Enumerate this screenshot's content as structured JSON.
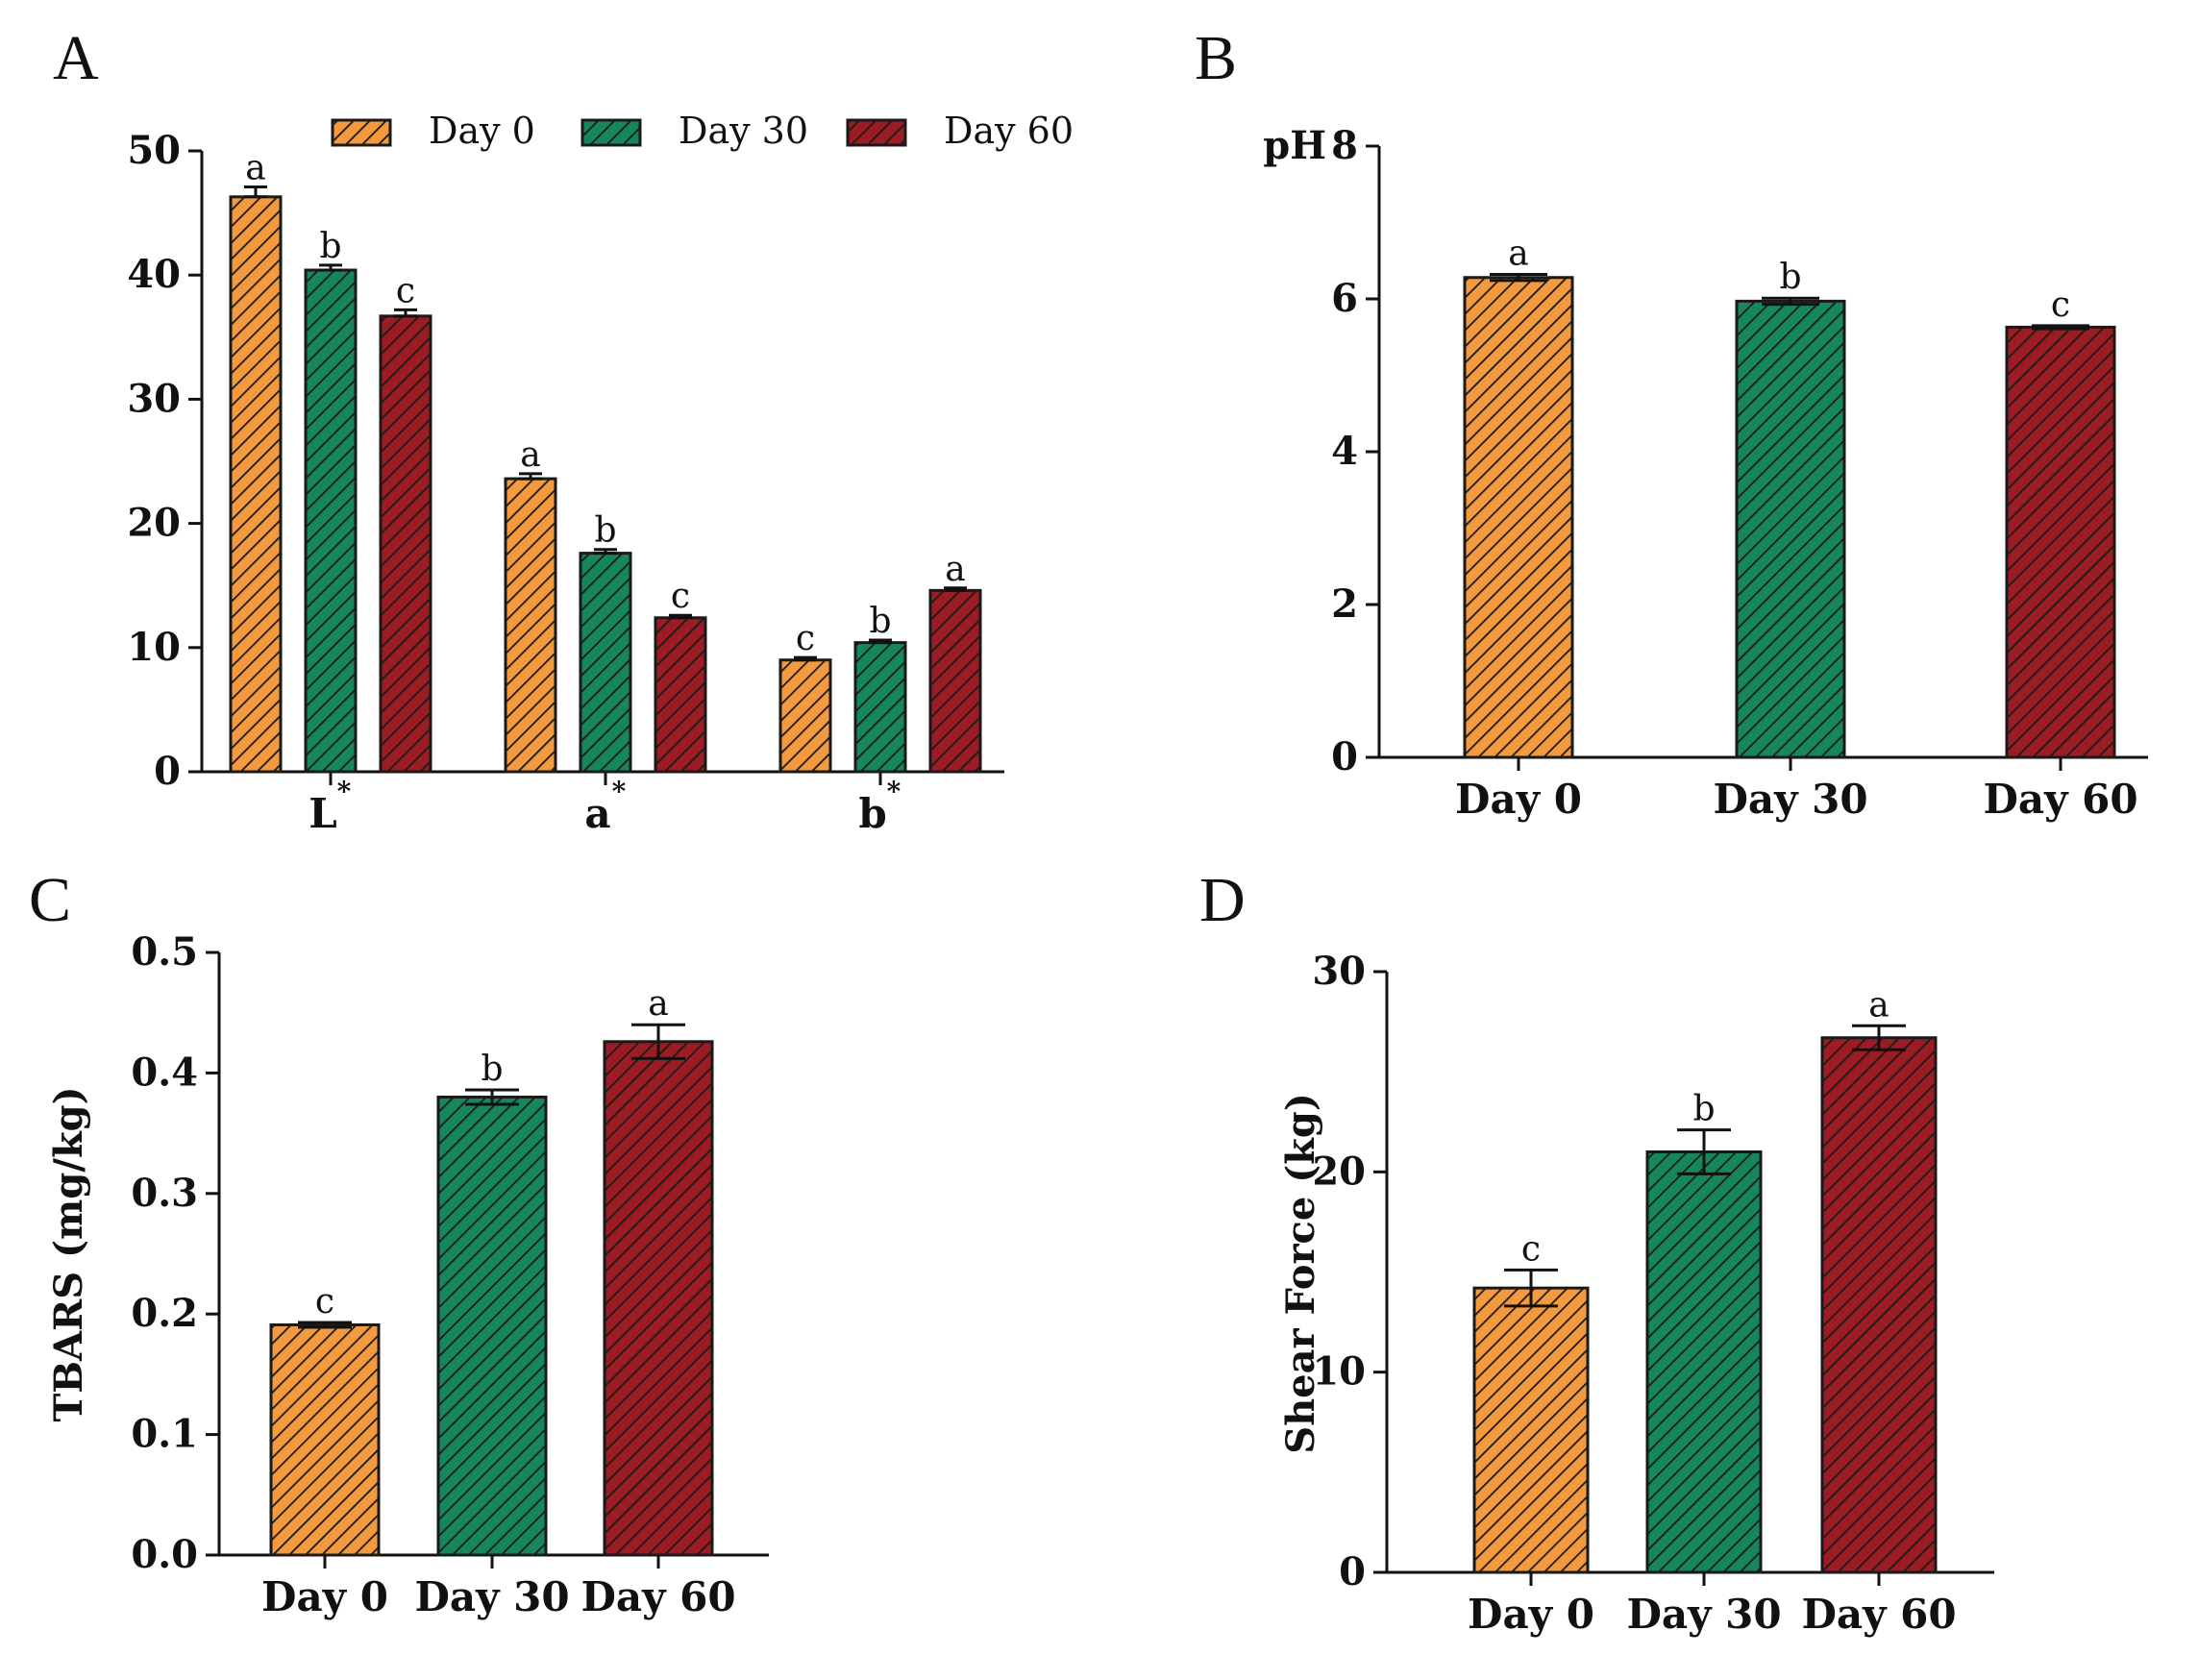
{
  "colors": {
    "day0": "#f39a3f",
    "day30": "#15875a",
    "day60": "#9b1c22",
    "hatch": "#1a1a1a"
  },
  "legend": {
    "position": "top",
    "entries": [
      "Day 0",
      "Day 30",
      "Day 60"
    ]
  },
  "chart_data": [
    {
      "panel": "A",
      "type": "bar",
      "categories": [
        "L",
        "a",
        "b"
      ],
      "category_superscript": "*",
      "series": [
        {
          "name": "Day 0",
          "values": [
            46.3,
            23.6,
            9.0
          ],
          "errors": [
            0.8,
            0.4,
            0.2
          ],
          "letters": [
            "a",
            "a",
            "c"
          ]
        },
        {
          "name": "Day 30",
          "values": [
            40.4,
            17.6,
            10.4
          ],
          "errors": [
            0.4,
            0.3,
            0.2
          ],
          "letters": [
            "b",
            "b",
            "b"
          ]
        },
        {
          "name": "Day 60",
          "values": [
            36.7,
            12.4,
            14.6
          ],
          "errors": [
            0.5,
            0.2,
            0.2
          ],
          "letters": [
            "c",
            "c",
            "a"
          ]
        }
      ],
      "ylim": [
        0,
        50
      ],
      "yticks": [
        "0",
        "10",
        "20",
        "30",
        "40",
        "50"
      ],
      "ylabel": ""
    },
    {
      "panel": "B",
      "type": "bar",
      "categories": [
        "Day 0",
        "Day 30",
        "Day 60"
      ],
      "values": [
        6.28,
        5.97,
        5.63
      ],
      "errors": [
        0.04,
        0.04,
        0.02
      ],
      "letters": [
        "a",
        "b",
        "c"
      ],
      "ylim": [
        0,
        8
      ],
      "yticks": [
        "0",
        "2",
        "4",
        "6",
        "8"
      ],
      "ylabel": "pH"
    },
    {
      "panel": "C",
      "type": "bar",
      "categories": [
        "Day 0",
        "Day 30",
        "Day 60"
      ],
      "values": [
        0.191,
        0.38,
        0.426
      ],
      "errors": [
        0.002,
        0.006,
        0.014
      ],
      "letters": [
        "c",
        "b",
        "a"
      ],
      "ylim": [
        0,
        0.5
      ],
      "yticks": [
        "0.0",
        "0.1",
        "0.2",
        "0.3",
        "0.4",
        "0.5"
      ],
      "ylabel": "TBARS (mg/kg)"
    },
    {
      "panel": "D",
      "type": "bar",
      "categories": [
        "Day 0",
        "Day 30",
        "Day 60"
      ],
      "values": [
        14.2,
        21.0,
        26.7
      ],
      "errors": [
        0.9,
        1.1,
        0.6
      ],
      "letters": [
        "c",
        "b",
        "a"
      ],
      "ylim": [
        0,
        30
      ],
      "yticks": [
        "0",
        "10",
        "20",
        "30"
      ],
      "ylabel": "Shear Force (kg)"
    }
  ]
}
